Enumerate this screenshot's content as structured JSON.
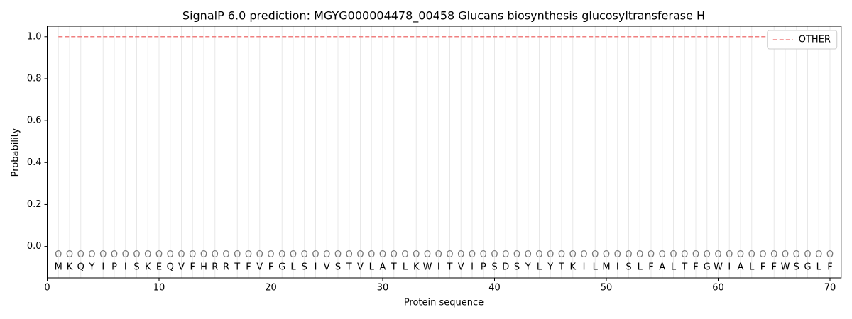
{
  "chart_data": {
    "type": "line",
    "title": "SignalP 6.0 prediction: MGYG000004478_00458 Glucans biosynthesis glucosyltransferase H",
    "xlabel": "Protein sequence",
    "ylabel": "Probability",
    "x": [
      1,
      2,
      3,
      4,
      5,
      6,
      7,
      8,
      9,
      10,
      11,
      12,
      13,
      14,
      15,
      16,
      17,
      18,
      19,
      20,
      21,
      22,
      23,
      24,
      25,
      26,
      27,
      28,
      29,
      30,
      31,
      32,
      33,
      34,
      35,
      36,
      37,
      38,
      39,
      40,
      41,
      42,
      43,
      44,
      45,
      46,
      47,
      48,
      49,
      50,
      51,
      52,
      53,
      54,
      55,
      56,
      57,
      58,
      59,
      60,
      61,
      62,
      63,
      64,
      65,
      66,
      67,
      68,
      69,
      70
    ],
    "residues": [
      "M",
      "K",
      "Q",
      "Y",
      "I",
      "P",
      "I",
      "S",
      "K",
      "E",
      "Q",
      "V",
      "F",
      "H",
      "R",
      "R",
      "T",
      "F",
      "V",
      "F",
      "G",
      "L",
      "S",
      "I",
      "V",
      "S",
      "T",
      "V",
      "L",
      "A",
      "T",
      "L",
      "K",
      "W",
      "I",
      "T",
      "V",
      "I",
      "P",
      "S",
      "D",
      "S",
      "Y",
      "L",
      "Y",
      "T",
      "K",
      "I",
      "L",
      "M",
      "I",
      "S",
      "L",
      "F",
      "A",
      "L",
      "T",
      "F",
      "G",
      "W",
      "I",
      "A",
      "L",
      "F",
      "F",
      "W",
      "S",
      "G",
      "L",
      "F"
    ],
    "region_labels": [
      "O",
      "O",
      "O",
      "O",
      "O",
      "O",
      "O",
      "O",
      "O",
      "O",
      "O",
      "O",
      "O",
      "O",
      "O",
      "O",
      "O",
      "O",
      "O",
      "O",
      "O",
      "O",
      "O",
      "O",
      "O",
      "O",
      "O",
      "O",
      "O",
      "O",
      "O",
      "O",
      "O",
      "O",
      "O",
      "O",
      "O",
      "O",
      "O",
      "O",
      "O",
      "O",
      "O",
      "O",
      "O",
      "O",
      "O",
      "O",
      "O",
      "O",
      "O",
      "O",
      "O",
      "O",
      "O",
      "O",
      "O",
      "O",
      "O",
      "O",
      "O",
      "O",
      "O",
      "O",
      "O",
      "O",
      "O",
      "O",
      "O",
      "O"
    ],
    "series": [
      {
        "name": "OTHER",
        "color": "#f08080",
        "dashed": true,
        "values": [
          1,
          1,
          1,
          1,
          1,
          1,
          1,
          1,
          1,
          1,
          1,
          1,
          1,
          1,
          1,
          1,
          1,
          1,
          1,
          1,
          1,
          1,
          1,
          1,
          1,
          1,
          1,
          1,
          1,
          1,
          1,
          1,
          1,
          1,
          1,
          1,
          1,
          1,
          1,
          1,
          1,
          1,
          1,
          1,
          1,
          1,
          1,
          1,
          1,
          1,
          1,
          1,
          1,
          1,
          1,
          1,
          1,
          1,
          1,
          1,
          1,
          1,
          1,
          1,
          1,
          1,
          1,
          1,
          1,
          1
        ]
      }
    ],
    "xlim": [
      0,
      71
    ],
    "ylim": [
      -0.15,
      1.05
    ],
    "xticks": [
      0,
      10,
      20,
      30,
      40,
      50,
      60,
      70
    ],
    "yticks": [
      {
        "value": 0,
        "label": "0.0"
      },
      {
        "value": 0.2,
        "label": "0.2"
      },
      {
        "value": 0.4,
        "label": "0.4"
      },
      {
        "value": 0.6,
        "label": "0.6"
      },
      {
        "value": 0.8,
        "label": "0.8"
      },
      {
        "value": 1,
        "label": "1.0"
      }
    ],
    "legend": "upper right"
  }
}
